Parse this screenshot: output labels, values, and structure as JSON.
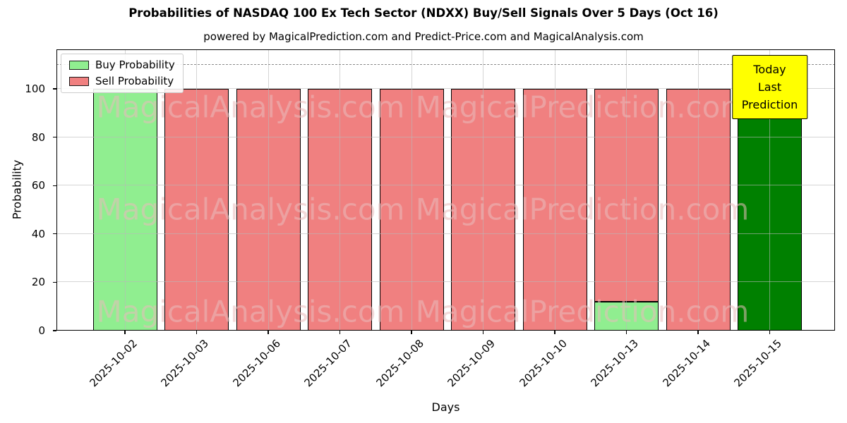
{
  "title": "Probabilities of NASDAQ 100 Ex Tech Sector (NDXX) Buy/Sell Signals Over 5 Days (Oct 16)",
  "subtitle": "powered by MagicalPrediction.com and Predict-Price.com and MagicalAnalysis.com",
  "chart_data": {
    "type": "bar",
    "stacked": true,
    "title": "Probabilities of NASDAQ 100 Ex Tech Sector (NDXX) Buy/Sell Signals Over 5 Days (Oct 16)",
    "subtitle": "powered by MagicalPrediction.com and Predict-Price.com and MagicalAnalysis.com",
    "xlabel": "Days",
    "ylabel": "Probability",
    "ylim": [
      0,
      116.3
    ],
    "yticks": [
      0,
      20,
      40,
      60,
      80,
      100
    ],
    "reference_line_y": 110,
    "grid": true,
    "categories": [
      "2025-10-02",
      "2025-10-03",
      "2025-10-06",
      "2025-10-07",
      "2025-10-08",
      "2025-10-09",
      "2025-10-10",
      "2025-10-13",
      "2025-10-14",
      "2025-10-15"
    ],
    "series": [
      {
        "name": "Buy Probability",
        "color": "#90EE90",
        "values": [
          100,
          0,
          0,
          0,
          0,
          0,
          0,
          12,
          0,
          0
        ]
      },
      {
        "name": "Sell Probability",
        "color": "#F08080",
        "values": [
          0,
          100,
          100,
          100,
          100,
          100,
          100,
          88,
          100,
          0
        ]
      },
      {
        "name": "Today Prediction",
        "color": "#008000",
        "values": [
          0,
          0,
          0,
          0,
          0,
          0,
          0,
          0,
          0,
          100
        ]
      }
    ],
    "legend": {
      "position": "upper-left",
      "items": [
        {
          "label": "Buy Probability",
          "color": "#90EE90"
        },
        {
          "label": "Sell Probability",
          "color": "#F08080"
        }
      ]
    },
    "annotation": {
      "lines": [
        "Today",
        "Last Prediction"
      ],
      "bg_color": "#FFFF00",
      "target_category": "2025-10-15"
    },
    "watermarks": [
      "MagicalAnalysis.com",
      "MagicalPrediction.com"
    ],
    "bar_edge_color": "#000000",
    "colors": {
      "buy": "#90EE90",
      "sell": "#F08080",
      "today": "#008000",
      "annotation_bg": "#FFFF00"
    }
  }
}
